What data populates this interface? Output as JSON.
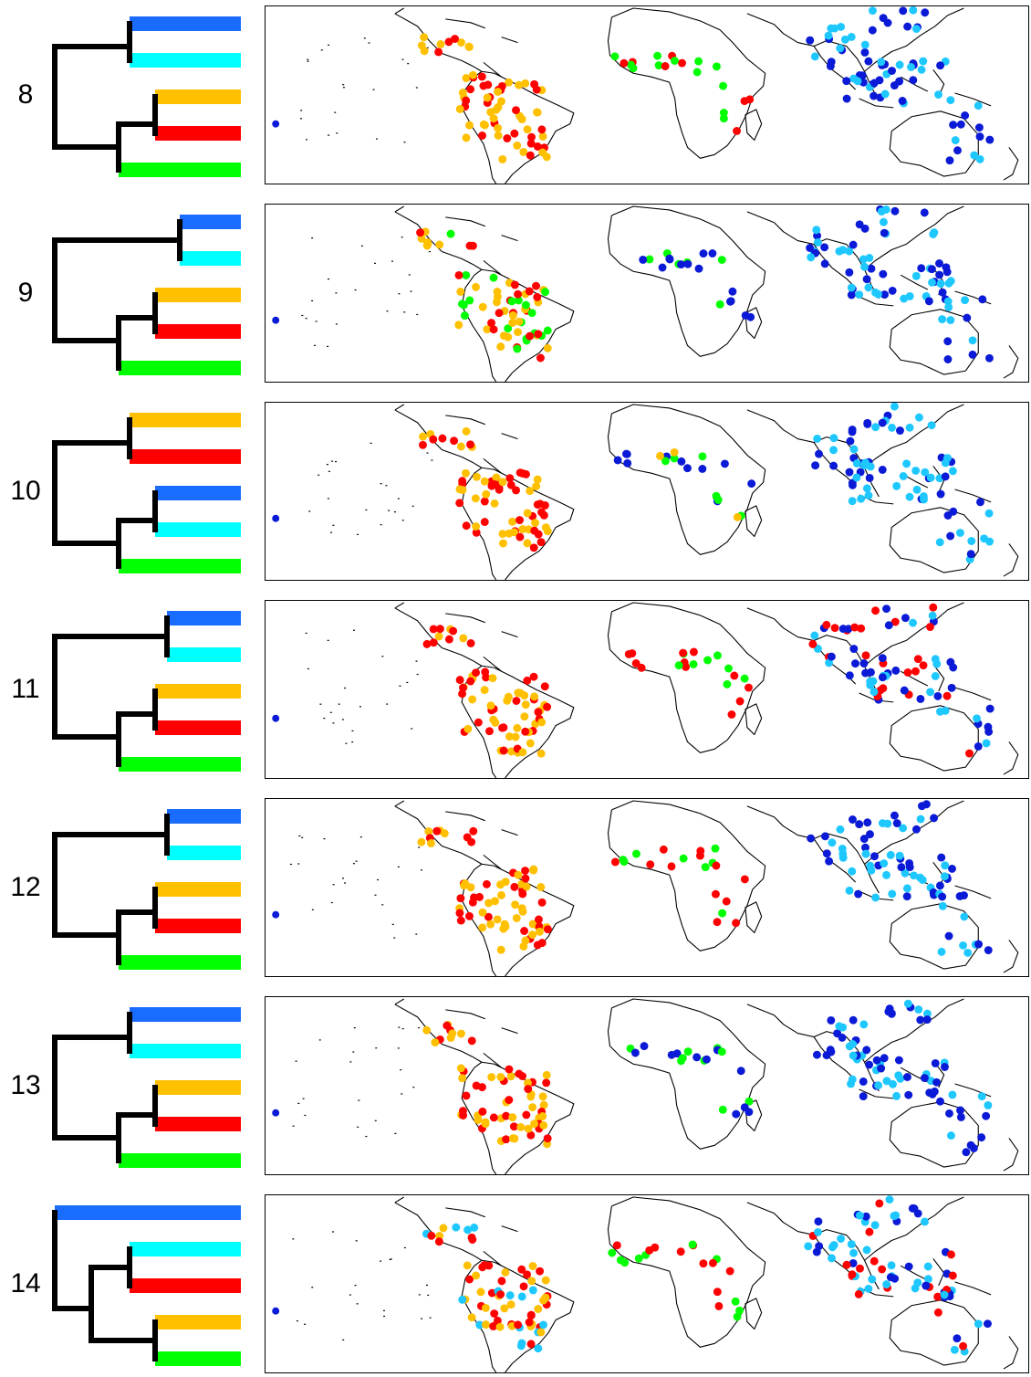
{
  "colors": {
    "blue": "#1a6cff",
    "cyan": "#00ffff",
    "orange": "#ffc000",
    "red": "#ff0000",
    "green": "#00ff00",
    "dark_blue": "#0a1ad6",
    "light_blue": "#1ec8ff",
    "tree": "#000000"
  },
  "panels": [
    {
      "label": "8",
      "tree": "A",
      "dots": {
        "americas": [
          "orange",
          "red"
        ],
        "africa": [
          "green",
          "red"
        ],
        "asia": [
          "dark_blue",
          "light_blue"
        ]
      }
    },
    {
      "label": "9",
      "tree": "B",
      "dots": {
        "americas": [
          "orange",
          "red",
          "green"
        ],
        "africa": [
          "green",
          "dark_blue"
        ],
        "asia": [
          "dark_blue",
          "light_blue"
        ]
      }
    },
    {
      "label": "10",
      "tree": "C",
      "dots": {
        "americas": [
          "orange",
          "red"
        ],
        "africa": [
          "green",
          "orange",
          "dark_blue"
        ],
        "asia": [
          "dark_blue",
          "light_blue"
        ]
      }
    },
    {
      "label": "11",
      "tree": "D",
      "dots": {
        "americas": [
          "orange",
          "red"
        ],
        "africa": [
          "green",
          "red"
        ],
        "asia": [
          "dark_blue",
          "light_blue",
          "red"
        ]
      }
    },
    {
      "label": "12",
      "tree": "E",
      "dots": {
        "americas": [
          "orange",
          "red"
        ],
        "africa": [
          "green",
          "red"
        ],
        "asia": [
          "dark_blue",
          "light_blue"
        ]
      }
    },
    {
      "label": "13",
      "tree": "F",
      "dots": {
        "americas": [
          "orange",
          "red"
        ],
        "africa": [
          "green",
          "dark_blue"
        ],
        "asia": [
          "dark_blue",
          "light_blue"
        ]
      }
    },
    {
      "label": "14",
      "tree": "G",
      "dots": {
        "americas": [
          "orange",
          "red",
          "light_blue"
        ],
        "africa": [
          "green",
          "red"
        ],
        "asia": [
          "dark_blue",
          "light_blue",
          "red"
        ]
      }
    }
  ]
}
